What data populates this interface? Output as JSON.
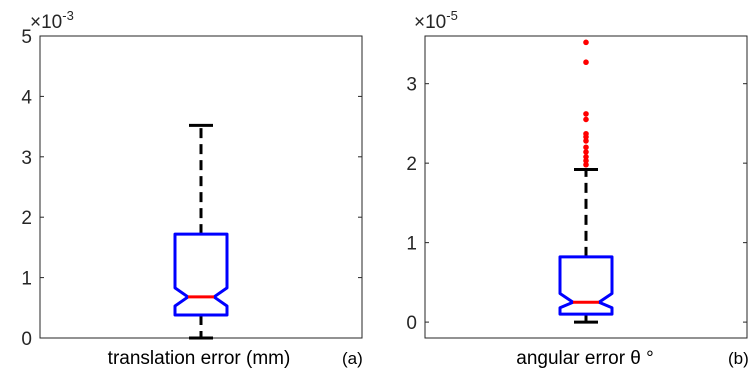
{
  "colors": {
    "box": "#0000ff",
    "median": "#ff0000",
    "whisker": "#000000",
    "outlier": "#ff0000",
    "axis": "#262626"
  },
  "chart_data": [
    {
      "type": "box",
      "exponent_label": {
        "base": "×10",
        "power": "-3"
      },
      "ylim": [
        0,
        5
      ],
      "yticks": [
        "0",
        "1",
        "2",
        "3",
        "4",
        "5"
      ],
      "xlabel": "translation error (mm)",
      "panel_label": "(a)",
      "grid": false,
      "notched": true,
      "box": {
        "whisker_low": 0.0,
        "q1": 0.38,
        "notch_low": 0.53,
        "median": 0.68,
        "notch_high": 0.83,
        "q3": 1.72,
        "whisker_high": 3.52
      },
      "outliers": []
    },
    {
      "type": "box",
      "exponent_label": {
        "base": "×10",
        "power": "-5"
      },
      "ylim": [
        -0.2,
        3.6
      ],
      "yticks": [
        "0",
        "1",
        "2",
        "3"
      ],
      "ytick_values": [
        0,
        1,
        2,
        3
      ],
      "xlabel": "angular error θ °",
      "panel_label": "(b)",
      "grid": false,
      "notched": true,
      "box": {
        "whisker_low": 0.0,
        "q1": 0.1,
        "notch_low": 0.18,
        "median": 0.25,
        "notch_high": 0.36,
        "q3": 0.82,
        "whisker_high": 1.92
      },
      "outliers": [
        1.98,
        2.03,
        2.08,
        2.14,
        2.2,
        2.28,
        2.33,
        2.37,
        2.55,
        2.62,
        3.27,
        3.52
      ]
    }
  ]
}
